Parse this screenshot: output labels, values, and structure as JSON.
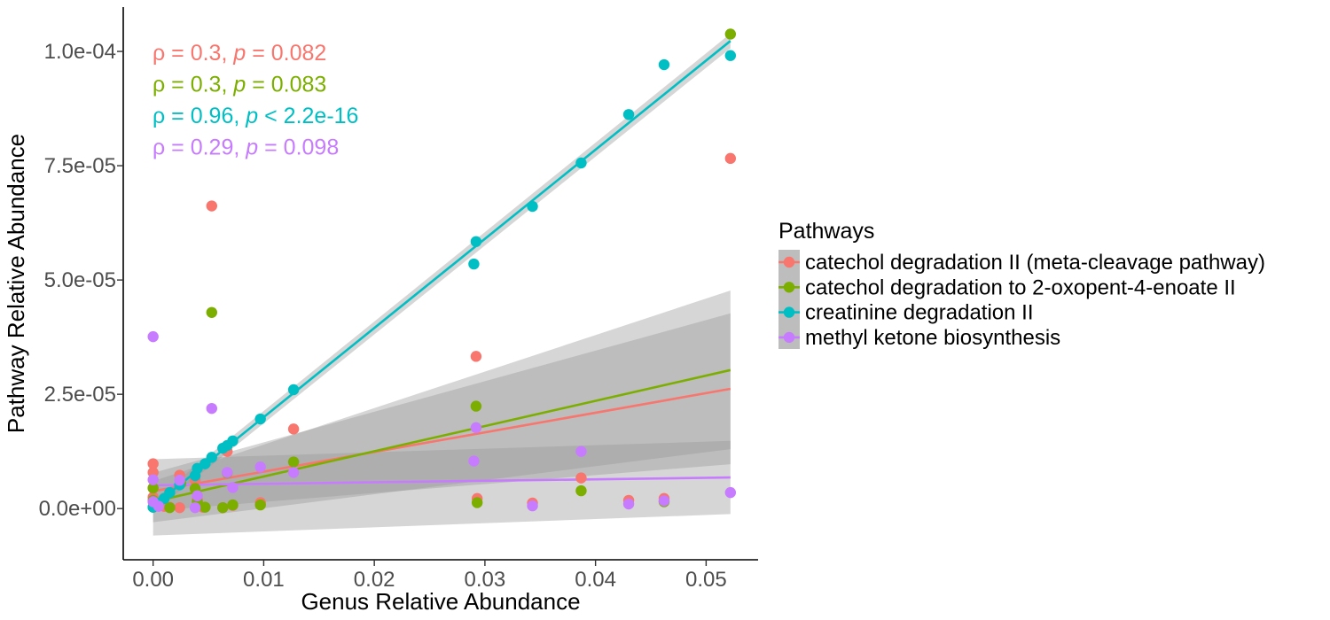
{
  "chart_data": {
    "type": "scatter",
    "xlabel": "Genus Relative Abundance",
    "ylabel": "Pathway Relative Abundance",
    "xlim": [
      -0.0027,
      0.0547
    ],
    "ylim": [
      -1.12e-05,
      0.0001097
    ],
    "x_ticks": [
      0.0,
      0.01,
      0.02,
      0.03,
      0.04,
      0.05
    ],
    "x_tick_labels": [
      "0.00",
      "0.01",
      "0.02",
      "0.03",
      "0.04",
      "0.05"
    ],
    "y_ticks": [
      0,
      2.5e-05,
      5e-05,
      7.5e-05,
      0.0001
    ],
    "y_tick_labels": [
      "0.0e+00",
      "2.5e-05",
      "5.0e-05",
      "7.5e-05",
      "1.0e-04"
    ],
    "grid": false,
    "legend": {
      "title": "Pathways",
      "position": "right"
    },
    "series": [
      {
        "name": "catechol degradation II (meta-cleavage pathway)",
        "color": "#F8766D",
        "stat": {
          "rho": "0.3",
          "p_op": "=",
          "p": "0.082"
        },
        "fit": {
          "x": [
            0,
            0.0522
          ],
          "y": [
            3.8e-06,
            2.62e-05
          ]
        },
        "band": {
          "upper": [
            7.8e-06,
            4.27e-05
          ],
          "lower": [
            -5e-07,
            9.7e-06
          ]
        },
        "points": [
          [
            0,
            9.8e-06
          ],
          [
            0,
            7.9e-06
          ],
          [
            0,
            4.5e-06
          ],
          [
            0,
            2.5e-06
          ],
          [
            0.0005,
            1e-06
          ],
          [
            0.001,
            5e-07
          ],
          [
            0.0015,
            3e-07
          ],
          [
            0.0024,
            7.3e-06
          ],
          [
            0.0024,
            2e-07
          ],
          [
            0.0038,
            6.2e-06
          ],
          [
            0.004,
            2e-06
          ],
          [
            0.0045,
            3e-07
          ],
          [
            0.0053,
            6.62e-05
          ],
          [
            0.0063,
            2e-07
          ],
          [
            0.0067,
            1.25e-05
          ],
          [
            0.0072,
            7e-07
          ],
          [
            0.0097,
            1.3e-06
          ],
          [
            0.0127,
            1.74e-05
          ],
          [
            0.0292,
            3.33e-05
          ],
          [
            0.0293,
            2.2e-06
          ],
          [
            0.0343,
            1.2e-06
          ],
          [
            0.0387,
            6.7e-06
          ],
          [
            0.043,
            1.8e-06
          ],
          [
            0.0462,
            2.2e-06
          ],
          [
            0.0522,
            7.66e-05
          ]
        ]
      },
      {
        "name": "catechol degradation to 2-oxopent-4-enoate II",
        "color": "#7CAE00",
        "stat": {
          "rho": "0.3",
          "p_op": "=",
          "p": "0.083"
        },
        "fit": {
          "x": [
            0,
            0.0522
          ],
          "y": [
            1.5e-06,
            3.03e-05
          ]
        },
        "band": {
          "upper": [
            6e-06,
            4.77e-05
          ],
          "lower": [
            -3e-06,
            1.3e-05
          ]
        },
        "points": [
          [
            0,
            4.5e-06
          ],
          [
            0,
            1.8e-06
          ],
          [
            0,
            3e-07
          ],
          [
            0.0015,
            2e-07
          ],
          [
            0.0025,
            5.5e-06
          ],
          [
            0.0038,
            4.4e-06
          ],
          [
            0.004,
            1.5e-06
          ],
          [
            0.0047,
            3e-07
          ],
          [
            0.0053,
            4.29e-05
          ],
          [
            0.0063,
            2e-07
          ],
          [
            0.0067,
            7.8e-06
          ],
          [
            0.0072,
            8e-07
          ],
          [
            0.0097,
            8e-07
          ],
          [
            0.0127,
            1.02e-05
          ],
          [
            0.0292,
            2.24e-05
          ],
          [
            0.0293,
            1.3e-06
          ],
          [
            0.0387,
            3.9e-06
          ],
          [
            0.0462,
            1.5e-06
          ],
          [
            0.0522,
            0.0001038
          ]
        ]
      },
      {
        "name": "creatinine degradation II",
        "color": "#00BFC4",
        "stat": {
          "rho": "0.96",
          "p_op": "<",
          "p": "2.2e-16"
        },
        "fit": {
          "x": [
            0,
            0.0522
          ],
          "y": [
            5e-07,
            0.0001023
          ]
        },
        "band": {
          "upper": [
            1.8e-06,
            0.0001039
          ],
          "lower": [
            -8e-07,
            0.0001007
          ]
        },
        "points": [
          [
            0,
            3e-07
          ],
          [
            0.0005,
            1.2e-06
          ],
          [
            0.001,
            2.2e-06
          ],
          [
            0.0015,
            3.5e-06
          ],
          [
            0.0024,
            5.2e-06
          ],
          [
            0.0038,
            7.2e-06
          ],
          [
            0.004,
            8.8e-06
          ],
          [
            0.0047,
            9.8e-06
          ],
          [
            0.0053,
            1.12e-05
          ],
          [
            0.0063,
            1.32e-05
          ],
          [
            0.0067,
            1.38e-05
          ],
          [
            0.0072,
            1.48e-05
          ],
          [
            0.0097,
            1.96e-05
          ],
          [
            0.0127,
            2.6e-05
          ],
          [
            0.029,
            5.35e-05
          ],
          [
            0.0292,
            5.84e-05
          ],
          [
            0.0343,
            6.61e-05
          ],
          [
            0.0387,
            7.56e-05
          ],
          [
            0.043,
            8.62e-05
          ],
          [
            0.0462,
            9.71e-05
          ],
          [
            0.0522,
            9.91e-05
          ]
        ]
      },
      {
        "name": "methyl ketone biosynthesis",
        "color": "#C77CFF",
        "stat": {
          "rho": "0.29",
          "p_op": "=",
          "p": "0.098"
        },
        "fit": {
          "x": [
            0,
            0.0522
          ],
          "y": [
            5.1e-06,
            6.8e-06
          ]
        },
        "band": {
          "upper": [
            1.08e-05,
            1.48e-05
          ],
          "lower": [
            -5.9e-06,
            -1.2e-06
          ]
        },
        "points": [
          [
            0,
            3.76e-05
          ],
          [
            0,
            6.3e-06
          ],
          [
            0,
            1.5e-06
          ],
          [
            0.0005,
            5e-07
          ],
          [
            0.0024,
            6.2e-06
          ],
          [
            0.0038,
            2e-07
          ],
          [
            0.004,
            2.8e-06
          ],
          [
            0.0053,
            2.19e-05
          ],
          [
            0.0067,
            7.9e-06
          ],
          [
            0.0072,
            4.6e-06
          ],
          [
            0.0097,
            9.1e-06
          ],
          [
            0.0127,
            7.9e-06
          ],
          [
            0.029,
            1.04e-05
          ],
          [
            0.0292,
            1.77e-05
          ],
          [
            0.0343,
            6e-07
          ],
          [
            0.0387,
            1.25e-05
          ],
          [
            0.043,
            1e-06
          ],
          [
            0.0462,
            1.7e-06
          ],
          [
            0.0522,
            3.5e-06
          ]
        ]
      }
    ]
  }
}
